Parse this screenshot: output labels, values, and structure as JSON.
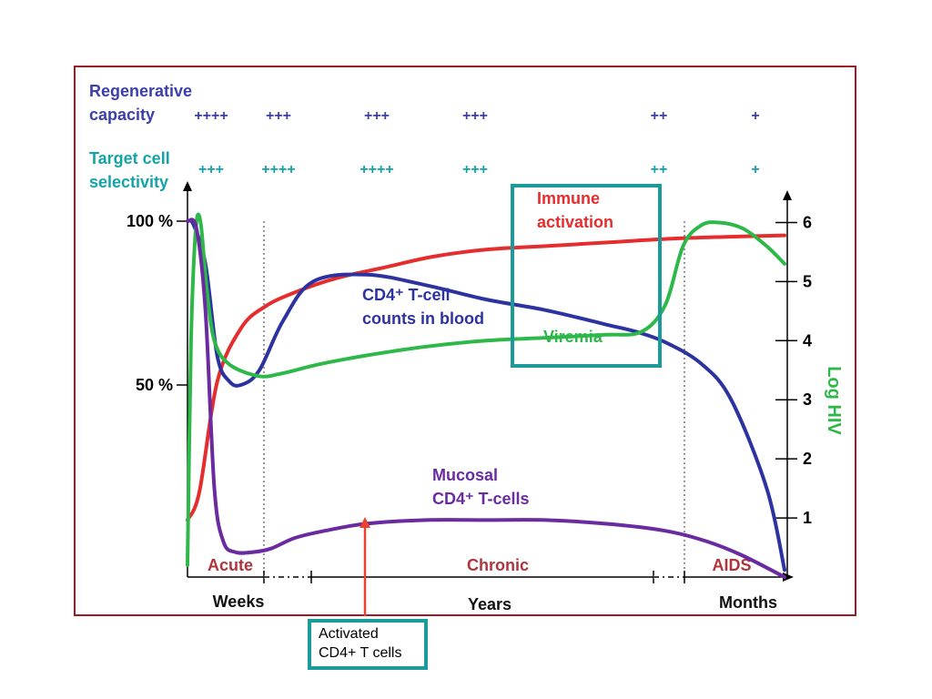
{
  "chart_data": {
    "type": "line",
    "x_phases": [
      "Acute",
      "Chronic",
      "AIDS"
    ],
    "x_units": [
      "Weeks",
      "Years",
      "Months"
    ],
    "y_left": {
      "ticks": [
        "100 %",
        "50 %"
      ]
    },
    "y_right": {
      "label": "Log HIV",
      "ticks": [
        1,
        2,
        3,
        4,
        5,
        6
      ],
      "range": [
        0,
        6.5
      ]
    },
    "rows": [
      {
        "label": "Regenerative capacity",
        "color": "#3b3fa8",
        "values": [
          "++++",
          "+++",
          "+++",
          "+++",
          "++",
          "+"
        ]
      },
      {
        "label": "Target cell selectivity",
        "color": "#14a3a8",
        "values": [
          "+++",
          "++++",
          "++++",
          "+++",
          "++",
          "+"
        ]
      }
    ],
    "series": [
      {
        "name": "Immune activation",
        "color": "#e52d2d",
        "axis": "left",
        "x": [
          0,
          0.2,
          0.5,
          0.9,
          1.3,
          1.8,
          2.5,
          3.3,
          4.1,
          5.0,
          6.0,
          7.0,
          8.0,
          9.0,
          10.0
        ],
        "y": [
          16,
          24,
          55,
          70,
          76,
          80,
          84,
          87,
          90,
          92,
          93,
          94,
          95,
          95.6,
          96
        ]
      },
      {
        "name": "CD4⁺ T-cell counts in blood",
        "color": "#2c33a0",
        "axis": "left",
        "x": [
          0,
          0.1,
          0.3,
          0.5,
          0.7,
          0.9,
          1.2,
          1.6,
          2.1,
          3.0,
          4.0,
          5.0,
          6.0,
          7.0,
          7.5,
          8.0,
          8.6,
          9.1,
          9.7,
          10.0
        ],
        "y": [
          100,
          99,
          88,
          62,
          55,
          54,
          58,
          72,
          83,
          85,
          82,
          78,
          75,
          71,
          69,
          66,
          60,
          50,
          25,
          2
        ]
      },
      {
        "name": "Viremia",
        "color": "#2fb84a",
        "axis": "right",
        "x": [
          0,
          0.06,
          0.14,
          0.22,
          0.32,
          0.45,
          0.7,
          1.2,
          1.6,
          2.2,
          3.0,
          4.0,
          5.0,
          6.0,
          7.0,
          7.6,
          8.0,
          8.3,
          8.6,
          8.9,
          9.3,
          9.7,
          10.0
        ],
        "y": [
          0.2,
          4.0,
          5.9,
          6.0,
          4.9,
          4.0,
          3.6,
          3.4,
          3.45,
          3.6,
          3.75,
          3.9,
          4.0,
          4.05,
          4.1,
          4.15,
          4.6,
          5.6,
          5.95,
          6.0,
          5.9,
          5.6,
          5.3
        ]
      },
      {
        "name": "Mucosal CD4⁺ T-cells",
        "color": "#6a2aa0",
        "axis": "left",
        "x": [
          0,
          0.15,
          0.3,
          0.45,
          0.6,
          0.8,
          1.1,
          1.4,
          1.8,
          2.3,
          3.0,
          4.0,
          5.0,
          6.0,
          7.0,
          8.0,
          8.7,
          9.3,
          10.0
        ],
        "y": [
          100,
          98,
          75,
          25,
          10,
          7,
          7,
          8,
          11,
          13,
          15,
          16,
          16,
          16,
          15,
          13,
          10,
          6,
          0
        ]
      }
    ],
    "labels": {
      "immune": [
        "Immune",
        "activation"
      ],
      "cd4blood": [
        "CD4⁺ T-cell",
        "counts in blood"
      ],
      "viremia": "Viremia",
      "mucosal": [
        "Mucosal",
        "CD4⁺ T-cells"
      ]
    },
    "annotation": {
      "lines": [
        "Activated",
        "CD4+ T cells"
      ],
      "arrow_color": "#e8442f"
    },
    "highlight_box_color": "#1a9a98"
  }
}
